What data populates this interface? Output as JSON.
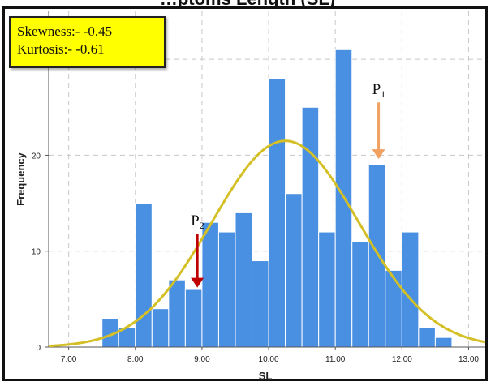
{
  "chart_data": {
    "type": "bar",
    "title": "…ptoms Length (SL)",
    "xlabel": "SL",
    "ylabel": "Frequency",
    "xlim": [
      6.7,
      13.25
    ],
    "ylim": [
      0,
      35
    ],
    "x_ticks": [
      "7.00",
      "8.00",
      "9.00",
      "10.00",
      "11.00",
      "12.00",
      "13.00"
    ],
    "y_ticks": [
      "0",
      "10",
      "20",
      "30"
    ],
    "grid": true,
    "bin_width": 0.25,
    "bins": [
      {
        "start": 7.5,
        "value": 3
      },
      {
        "start": 7.75,
        "value": 2
      },
      {
        "start": 8.0,
        "value": 15
      },
      {
        "start": 8.25,
        "value": 4
      },
      {
        "start": 8.5,
        "value": 7
      },
      {
        "start": 8.75,
        "value": 6
      },
      {
        "start": 9.0,
        "value": 13
      },
      {
        "start": 9.25,
        "value": 12
      },
      {
        "start": 9.5,
        "value": 14
      },
      {
        "start": 9.75,
        "value": 9
      },
      {
        "start": 10.0,
        "value": 28
      },
      {
        "start": 10.25,
        "value": 16
      },
      {
        "start": 10.5,
        "value": 25
      },
      {
        "start": 10.75,
        "value": 12
      },
      {
        "start": 11.0,
        "value": 31
      },
      {
        "start": 11.25,
        "value": 11
      },
      {
        "start": 11.5,
        "value": 19
      },
      {
        "start": 11.75,
        "value": 8
      },
      {
        "start": 12.0,
        "value": 12
      },
      {
        "start": 12.25,
        "value": 2
      },
      {
        "start": 12.5,
        "value": 1
      }
    ],
    "normal_curve": {
      "mean": 10.25,
      "peak": 21.5,
      "sd": 1.1
    },
    "bar_color": "#4a90e2",
    "curve_color": "#d4c026",
    "stats": {
      "skewness": "Skewness:-  -0.45",
      "kurtosis": "Kurtosis:- -0.61"
    },
    "annotations": [
      {
        "label": "P",
        "sub": "1",
        "x": 11.65,
        "arrow_from": 25.5,
        "arrow_to": 19.6,
        "color": "#f0a060"
      },
      {
        "label": "P",
        "sub": "2",
        "x": 8.93,
        "arrow_from": 11.8,
        "arrow_to": 6.2,
        "color": "#c00000"
      }
    ]
  }
}
